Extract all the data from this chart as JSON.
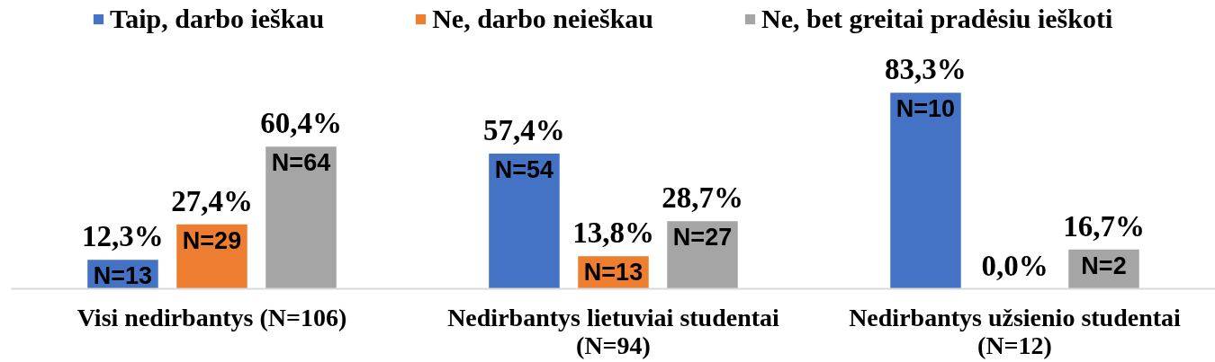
{
  "chart_data": {
    "type": "bar",
    "categories": [
      "Visi nedirbantys (N=106)",
      "Nedirbantys lietuviai studentai (N=94)",
      "Nedirbantys užsienio studentai (N=12)"
    ],
    "series": [
      {
        "name": "Taip, darbo ieškau",
        "color": "#4472c4",
        "values": [
          12.3,
          57.4,
          83.3
        ],
        "value_labels": [
          "12,3%",
          "57,4%",
          "83,3%"
        ]
      },
      {
        "name": "Ne, darbo neieškau",
        "color": "#ed7d31",
        "values": [
          27.4,
          13.8,
          0.0
        ],
        "value_labels": [
          "27,4%",
          "13,8%",
          "0,0%"
        ]
      },
      {
        "name": "Ne, bet greitai pradėsiu ieškoti",
        "color": "#a5a5a5",
        "values": [
          60.4,
          28.7,
          16.7
        ],
        "value_labels": [
          "60,4%",
          "28,7%",
          "16,7%"
        ]
      }
    ],
    "tick_labels": "x",
    "grid": false,
    "legend": "top",
    "annotations": [
      "N=13",
      "N=29",
      "N=64",
      "N=54",
      "N=13",
      "N=27",
      "N=10",
      "N=2"
    ]
  }
}
